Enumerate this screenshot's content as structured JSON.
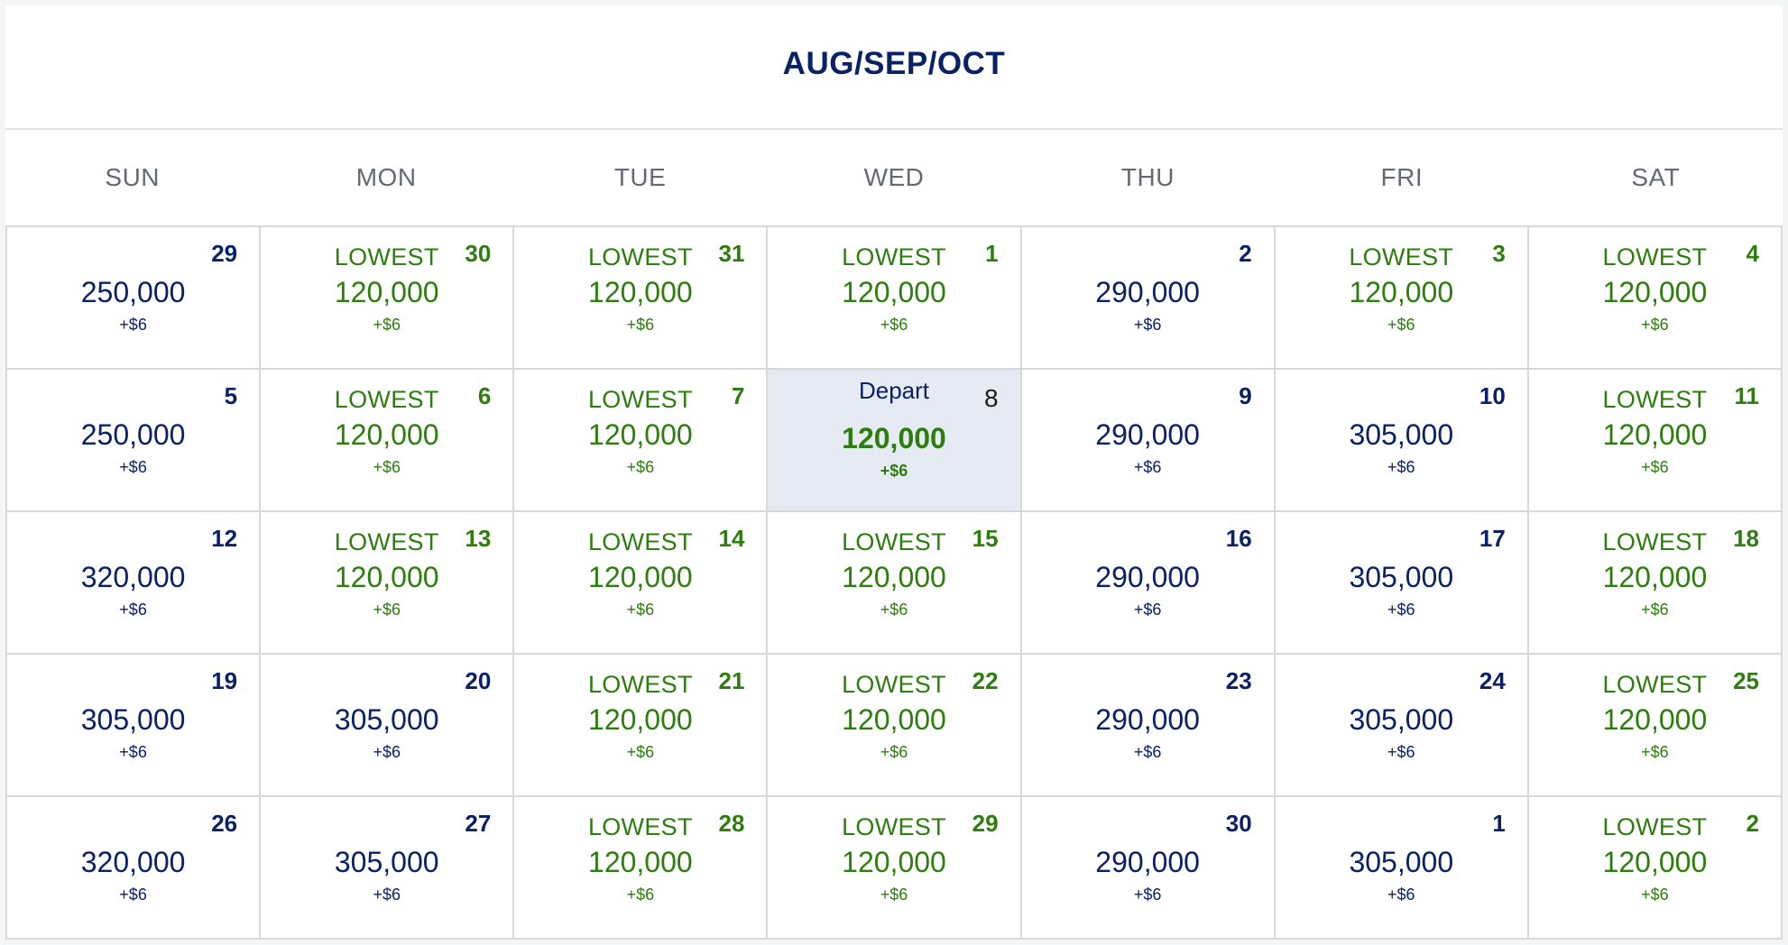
{
  "calendar": {
    "title": "AUG/SEP/OCT",
    "weekdays": [
      "SUN",
      "MON",
      "TUE",
      "WED",
      "THU",
      "FRI",
      "SAT"
    ],
    "lowest_label": "LOWEST",
    "depart_label": "Depart",
    "colors": {
      "navy": "#0b2165",
      "green": "#2e7d0f",
      "selected_bg": "#e6eaf2"
    },
    "weeks": [
      [
        {
          "day": "29",
          "price": "250,000",
          "tax": "+$6",
          "lowest": false
        },
        {
          "day": "30",
          "price": "120,000",
          "tax": "+$6",
          "lowest": true
        },
        {
          "day": "31",
          "price": "120,000",
          "tax": "+$6",
          "lowest": true
        },
        {
          "day": "1",
          "price": "120,000",
          "tax": "+$6",
          "lowest": true
        },
        {
          "day": "2",
          "price": "290,000",
          "tax": "+$6",
          "lowest": false
        },
        {
          "day": "3",
          "price": "120,000",
          "tax": "+$6",
          "lowest": true
        },
        {
          "day": "4",
          "price": "120,000",
          "tax": "+$6",
          "lowest": true
        }
      ],
      [
        {
          "day": "5",
          "price": "250,000",
          "tax": "+$6",
          "lowest": false
        },
        {
          "day": "6",
          "price": "120,000",
          "tax": "+$6",
          "lowest": true
        },
        {
          "day": "7",
          "price": "120,000",
          "tax": "+$6",
          "lowest": true
        },
        {
          "day": "8",
          "price": "120,000",
          "tax": "+$6",
          "lowest": true,
          "selected": true
        },
        {
          "day": "9",
          "price": "290,000",
          "tax": "+$6",
          "lowest": false
        },
        {
          "day": "10",
          "price": "305,000",
          "tax": "+$6",
          "lowest": false
        },
        {
          "day": "11",
          "price": "120,000",
          "tax": "+$6",
          "lowest": true
        }
      ],
      [
        {
          "day": "12",
          "price": "320,000",
          "tax": "+$6",
          "lowest": false
        },
        {
          "day": "13",
          "price": "120,000",
          "tax": "+$6",
          "lowest": true
        },
        {
          "day": "14",
          "price": "120,000",
          "tax": "+$6",
          "lowest": true
        },
        {
          "day": "15",
          "price": "120,000",
          "tax": "+$6",
          "lowest": true
        },
        {
          "day": "16",
          "price": "290,000",
          "tax": "+$6",
          "lowest": false
        },
        {
          "day": "17",
          "price": "305,000",
          "tax": "+$6",
          "lowest": false
        },
        {
          "day": "18",
          "price": "120,000",
          "tax": "+$6",
          "lowest": true
        }
      ],
      [
        {
          "day": "19",
          "price": "305,000",
          "tax": "+$6",
          "lowest": false
        },
        {
          "day": "20",
          "price": "305,000",
          "tax": "+$6",
          "lowest": false
        },
        {
          "day": "21",
          "price": "120,000",
          "tax": "+$6",
          "lowest": true
        },
        {
          "day": "22",
          "price": "120,000",
          "tax": "+$6",
          "lowest": true
        },
        {
          "day": "23",
          "price": "290,000",
          "tax": "+$6",
          "lowest": false
        },
        {
          "day": "24",
          "price": "305,000",
          "tax": "+$6",
          "lowest": false
        },
        {
          "day": "25",
          "price": "120,000",
          "tax": "+$6",
          "lowest": true
        }
      ],
      [
        {
          "day": "26",
          "price": "320,000",
          "tax": "+$6",
          "lowest": false
        },
        {
          "day": "27",
          "price": "305,000",
          "tax": "+$6",
          "lowest": false
        },
        {
          "day": "28",
          "price": "120,000",
          "tax": "+$6",
          "lowest": true
        },
        {
          "day": "29",
          "price": "120,000",
          "tax": "+$6",
          "lowest": true
        },
        {
          "day": "30",
          "price": "290,000",
          "tax": "+$6",
          "lowest": false
        },
        {
          "day": "1",
          "price": "305,000",
          "tax": "+$6",
          "lowest": false
        },
        {
          "day": "2",
          "price": "120,000",
          "tax": "+$6",
          "lowest": true
        }
      ]
    ]
  }
}
